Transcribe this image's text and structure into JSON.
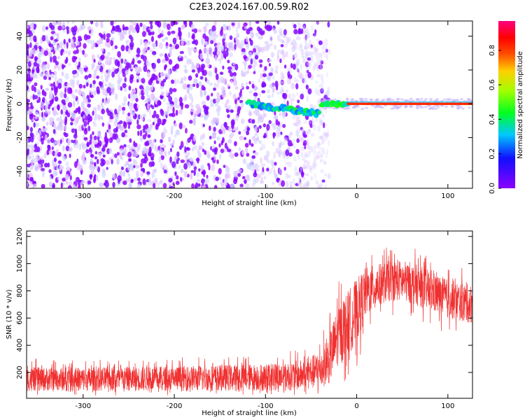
{
  "title": "C2E3.2024.167.00.59.R02",
  "colors": {
    "snr_line": "#f03030",
    "background": "#ffffff",
    "axis": "#000000"
  },
  "chart_data": [
    {
      "type": "heatmap",
      "xlabel": "Height of straight line (km)",
      "ylabel": "Frequency (Hz)",
      "xlim": [
        -362,
        127
      ],
      "ylim": [
        -50,
        49
      ],
      "x_ticks": [
        -300,
        -200,
        -100,
        0,
        100
      ],
      "y_ticks": [
        -40,
        -20,
        0,
        20,
        40
      ],
      "colorbar": {
        "label": "Normalized spectral amplitude",
        "range": [
          0,
          0.97
        ],
        "ticks": [
          0.0,
          0.2,
          0.4,
          0.6,
          0.8
        ],
        "colormap": "rainbow (violet → blue → cyan → green → yellow → orange → red → magenta)"
      },
      "features": {
        "noise_region_x": [
          -362,
          -40
        ],
        "signal_line_frequency": 0,
        "signal_line_x": [
          -120,
          127
        ]
      }
    },
    {
      "type": "line",
      "xlabel": "Height of straight line (km)",
      "ylabel": "SNR (10 * v/v)",
      "xlim": [
        -362,
        127
      ],
      "ylim": [
        10,
        1240
      ],
      "x_ticks": [
        -300,
        -200,
        -100,
        0,
        100
      ],
      "y_ticks": [
        200,
        400,
        600,
        800,
        1000,
        1200
      ],
      "series": [
        {
          "profile_x": [
            -362,
            -300,
            -200,
            -100,
            -60,
            -40,
            -30,
            -20,
            -10,
            0,
            10,
            20,
            30,
            40,
            60,
            80,
            100,
            127
          ],
          "profile_mean": [
            150,
            150,
            155,
            165,
            180,
            220,
            300,
            480,
            560,
            650,
            790,
            830,
            860,
            880,
            860,
            800,
            740,
            700
          ],
          "profile_spread": [
            110,
            110,
            115,
            125,
            140,
            170,
            230,
            280,
            300,
            300,
            230,
            200,
            190,
            190,
            190,
            190,
            180,
            180
          ]
        }
      ]
    }
  ]
}
